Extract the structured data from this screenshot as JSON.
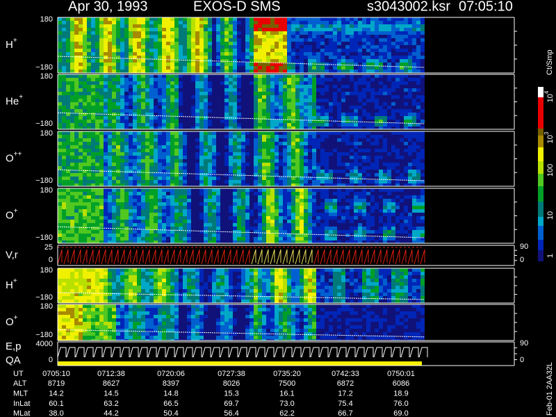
{
  "header": {
    "date": "Apr 30, 1993",
    "instrument": "EXOS-D SMS",
    "file": "s3043002.ksr",
    "time": "07:05:10"
  },
  "panels": [
    {
      "label": "H",
      "sup": "+",
      "ticks": [
        "180",
        "−180"
      ]
    },
    {
      "label": "He",
      "sup": "+",
      "ticks": [
        "180",
        "−180"
      ]
    },
    {
      "label": "O",
      "sup": "++",
      "ticks": [
        "180",
        "−180"
      ]
    },
    {
      "label": "O",
      "sup": "+",
      "ticks": [
        "180",
        "−180"
      ]
    },
    {
      "label": "V,r",
      "ticks": [
        "25",
        "0"
      ],
      "right_ticks": [
        "90",
        "0"
      ]
    },
    {
      "label": "H",
      "sup": "+",
      "ticks": [
        "180",
        "−180"
      ]
    },
    {
      "label": "O",
      "sup": "+",
      "ticks": [
        "180",
        "−180"
      ]
    },
    {
      "label": "E,p",
      "label2": "QA",
      "ticks": [
        "4000",
        "0"
      ],
      "right_ticks": [
        "90",
        "0"
      ]
    }
  ],
  "colorbar": {
    "title": "Ct/Smp",
    "labels": [
      {
        "base": "10",
        "exp": "4"
      },
      {
        "base": "10",
        "exp": "3"
      },
      "100",
      "10",
      "1"
    ]
  },
  "side_note": "Feb-01 2AA32L",
  "table": {
    "rows": [
      [
        "UT",
        "0705:10",
        "0712:38",
        "0720:06",
        "0727:38",
        "0735:20",
        "0742:33",
        "0750:01"
      ],
      [
        "ALT",
        "8719",
        "8627",
        "8397",
        "8026",
        "7500",
        "6872",
        "6086"
      ],
      [
        "MLT",
        "14.2",
        "14.5",
        "14.8",
        "15.3",
        "16.1",
        "17.2",
        "18.9"
      ],
      [
        "InLat",
        "60.1",
        "63.2",
        "66.5",
        "69.7",
        "73.0",
        "75.4",
        "76.0"
      ],
      [
        "MLat",
        "38.0",
        "44.2",
        "50.4",
        "56.4",
        "62.2",
        "66.7",
        "69.0"
      ]
    ]
  }
}
